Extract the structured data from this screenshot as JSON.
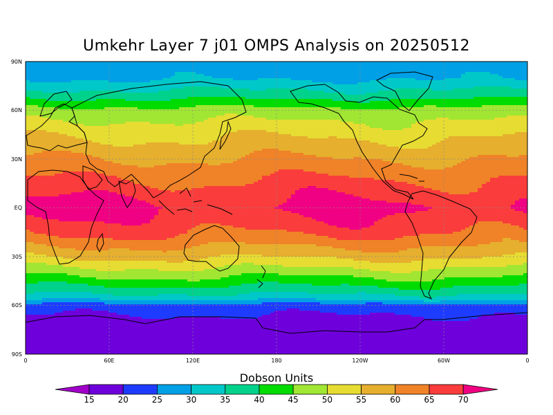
{
  "title": "Umkehr Layer 7 j01 OMPS Analysis on 20250512",
  "map": {
    "lat_labels": [
      "90N",
      "60N",
      "30N",
      "EQ",
      "30S",
      "60S",
      "90S"
    ],
    "lon_labels": [
      "0",
      "60E",
      "120E",
      "180",
      "120W",
      "60W",
      "0"
    ],
    "grid": true,
    "projection": "cylindrical equidistant, 0 to 360 longitude"
  },
  "colorbar": {
    "title": "Dobson Units",
    "ticks": [
      "15",
      "20",
      "25",
      "30",
      "35",
      "40",
      "45",
      "50",
      "55",
      "60",
      "65",
      "70"
    ],
    "colors": [
      "#a000c8",
      "#6e00dc",
      "#1e3cff",
      "#00a0e6",
      "#00c8c8",
      "#00d28c",
      "#00dc00",
      "#a0e632",
      "#e6dc32",
      "#e6af2d",
      "#f08228",
      "#fa3c3c",
      "#f00082"
    ]
  },
  "chart_data": {
    "type": "heatmap",
    "title": "Umkehr Layer 7 j01 OMPS Analysis on 20250512",
    "units": "Dobson Units",
    "field_profile_by_latitude": [
      {
        "lat": 90,
        "value": 27
      },
      {
        "lat": 80,
        "value": 29
      },
      {
        "lat": 70,
        "value": 37
      },
      {
        "lat": 60,
        "value": 47
      },
      {
        "lat": 45,
        "value": 54
      },
      {
        "lat": 30,
        "value": 60
      },
      {
        "lat": 15,
        "value": 66
      },
      {
        "lat": 0,
        "value": 71
      },
      {
        "lat": -15,
        "value": 66
      },
      {
        "lat": -30,
        "value": 56
      },
      {
        "lat": -45,
        "value": 43
      },
      {
        "lat": -55,
        "value": 33
      },
      {
        "lat": -60,
        "value": 23
      },
      {
        "lat": -70,
        "value": 18
      },
      {
        "lat": -90,
        "value": 17
      }
    ],
    "xlim": [
      0,
      360
    ],
    "ylim": [
      -90,
      90
    ],
    "grid": true
  }
}
